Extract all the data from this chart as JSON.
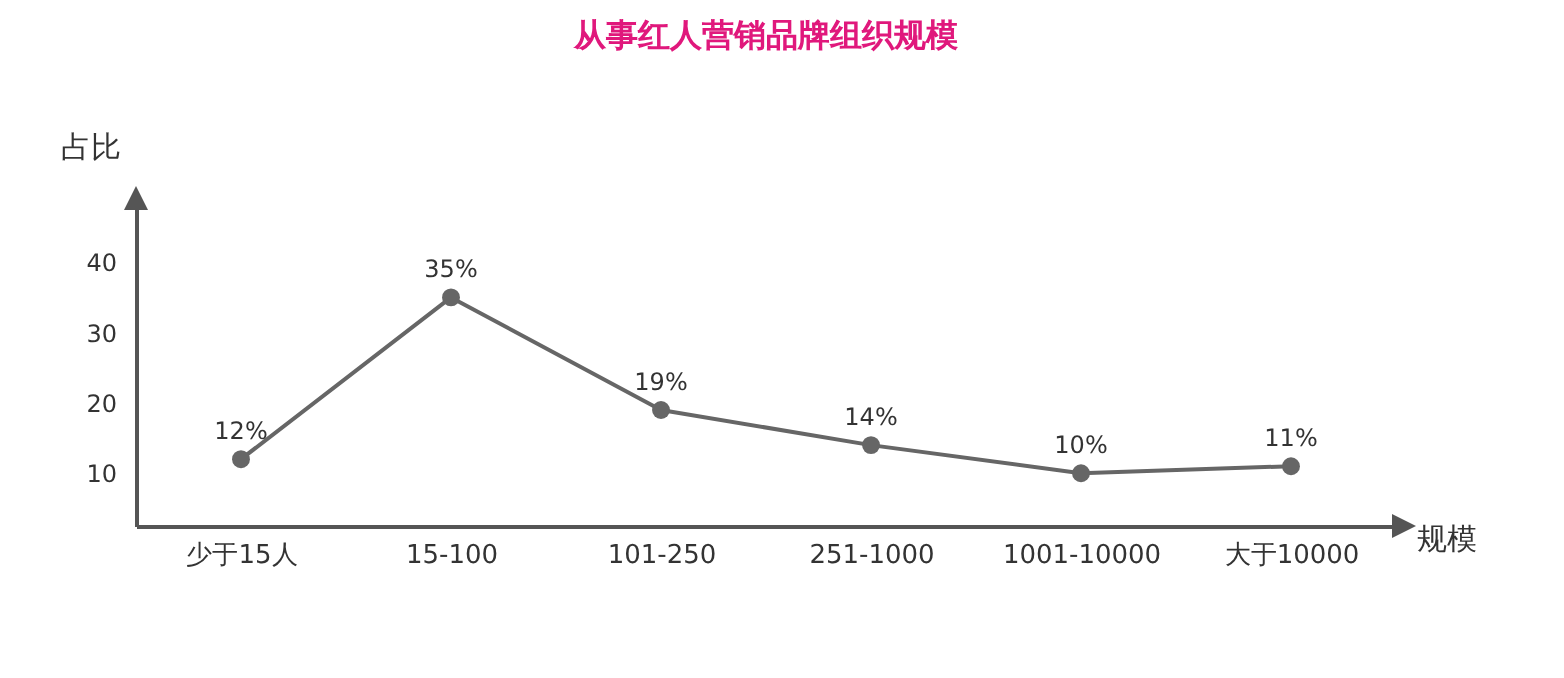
{
  "chart_data": {
    "type": "line",
    "title": "从事红人营销品牌组织规模",
    "xlabel": "规模",
    "ylabel": "占比",
    "categories": [
      "少于15人",
      "15-100",
      "101-250",
      "251-1000",
      "1001-10000",
      "大于10000"
    ],
    "series": [
      {
        "color": "#666666",
        "values": [
          12,
          35,
          19,
          14,
          10,
          11
        ],
        "value_labels": [
          "12%",
          "35%",
          "19%",
          "14%",
          "10%",
          "11%"
        ]
      }
    ],
    "ylim": [
      2.5,
      48
    ],
    "yticks": [
      10,
      20,
      30,
      40
    ],
    "grid": false,
    "marker": "circle",
    "line_style": "solid"
  }
}
